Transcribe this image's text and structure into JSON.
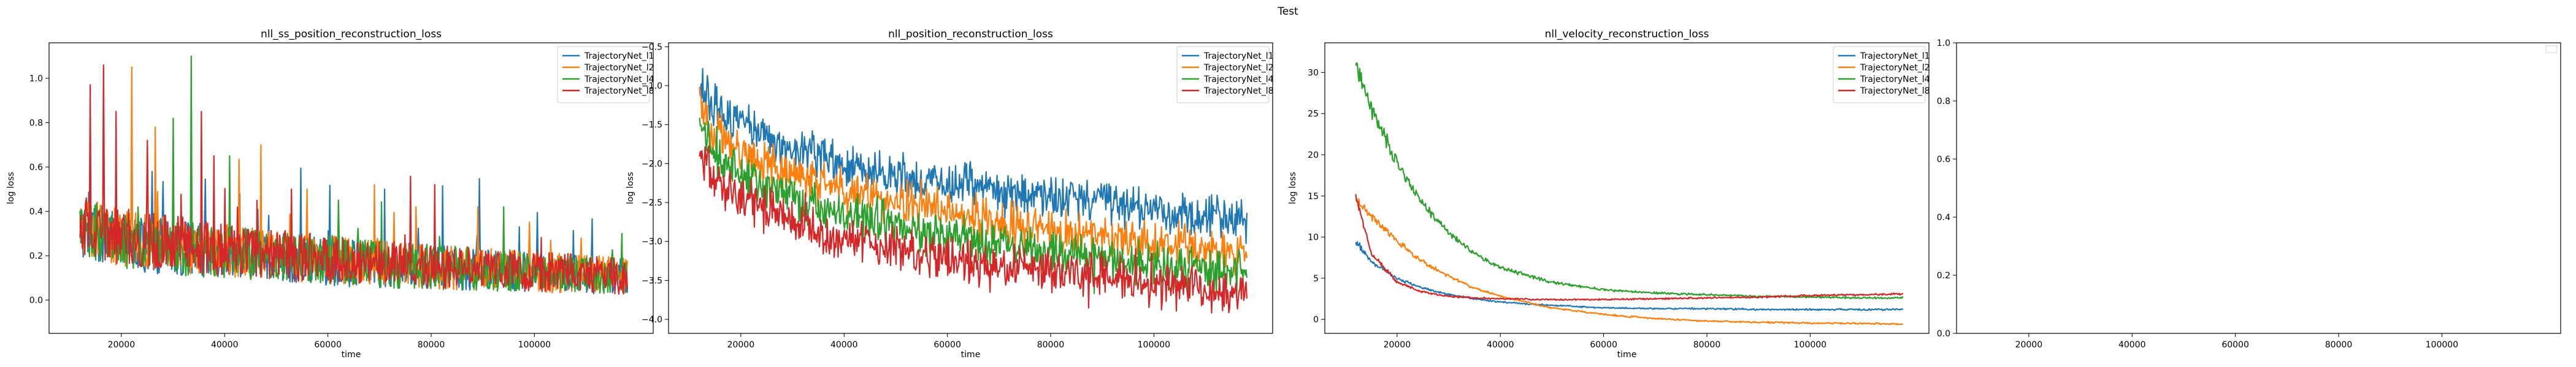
{
  "figure": {
    "suptitle": "Test"
  },
  "chart_data": [
    {
      "type": "line",
      "title": "nll_ss_position_reconstruction_loss",
      "xlabel": "time",
      "ylabel": "log loss",
      "xlim": [
        6000,
        123000
      ],
      "ylim": [
        -0.15,
        1.16
      ],
      "xticks": [
        20000,
        40000,
        60000,
        80000,
        100000
      ],
      "yticks": [
        0.0,
        0.2,
        0.4,
        0.6,
        0.8,
        1.0
      ],
      "ytick_labels": [
        "0.0",
        "0.2",
        "0.4",
        "0.6",
        "0.8",
        "1.0"
      ],
      "grid": false,
      "legend": "top-right",
      "x_range": [
        12000,
        118000
      ],
      "series": [
        {
          "name": "TrajectoryNet_l1",
          "color": "#1f77b4",
          "x": [
            12000,
            20000,
            30000,
            40000,
            50000,
            60000,
            70000,
            80000,
            90000,
            100000,
            110000,
            118000
          ],
          "values": [
            0.28,
            0.22,
            0.2,
            0.18,
            0.16,
            0.14,
            0.13,
            0.12,
            0.11,
            0.1,
            0.09,
            0.08
          ],
          "peaks": [
            [
              26000,
              0.58
            ],
            [
              43000,
              0.48
            ],
            [
              71000,
              0.5
            ],
            [
              97000,
              0.33
            ]
          ]
        },
        {
          "name": "TrajectoryNet_l2",
          "color": "#ff7f0e",
          "x": [
            12000,
            20000,
            30000,
            40000,
            50000,
            60000,
            70000,
            80000,
            90000,
            100000,
            110000,
            118000
          ],
          "values": [
            0.3,
            0.24,
            0.21,
            0.19,
            0.17,
            0.15,
            0.14,
            0.12,
            0.11,
            0.1,
            0.09,
            0.08
          ],
          "peaks": [
            [
              22000,
              1.05
            ],
            [
              26500,
              0.78
            ],
            [
              47000,
              0.7
            ],
            [
              56000,
              0.5
            ],
            [
              69000,
              0.52
            ],
            [
              77000,
              0.42
            ],
            [
              89000,
              0.42
            ],
            [
              109000,
              0.28
            ]
          ]
        },
        {
          "name": "TrajectoryNet_l4",
          "color": "#2ca02c",
          "x": [
            12000,
            20000,
            30000,
            40000,
            50000,
            60000,
            70000,
            80000,
            90000,
            100000,
            110000,
            118000
          ],
          "values": [
            0.29,
            0.23,
            0.2,
            0.18,
            0.17,
            0.15,
            0.13,
            0.12,
            0.11,
            0.1,
            0.09,
            0.09
          ],
          "peaks": [
            [
              33500,
              1.1
            ],
            [
              30000,
              0.82
            ],
            [
              41000,
              0.65
            ],
            [
              62000,
              0.45
            ],
            [
              94000,
              0.42
            ],
            [
              117000,
              0.3
            ]
          ]
        },
        {
          "name": "TrajectoryNet_l8",
          "color": "#d62728",
          "x": [
            12000,
            20000,
            30000,
            40000,
            50000,
            60000,
            70000,
            80000,
            90000,
            100000,
            110000,
            118000
          ],
          "values": [
            0.3,
            0.25,
            0.22,
            0.19,
            0.17,
            0.15,
            0.14,
            0.12,
            0.11,
            0.1,
            0.09,
            0.08
          ],
          "peaks": [
            [
              14000,
              0.97
            ],
            [
              16500,
              1.06
            ],
            [
              19000,
              0.85
            ],
            [
              25000,
              0.72
            ],
            [
              35500,
              0.85
            ],
            [
              38000,
              0.65
            ],
            [
              53000,
              0.5
            ]
          ]
        }
      ]
    },
    {
      "type": "line",
      "title": "nll_position_reconstruction_loss",
      "xlabel": "time",
      "ylabel": "log loss",
      "xlim": [
        6000,
        123000
      ],
      "ylim": [
        -4.18,
        -0.45
      ],
      "xticks": [
        20000,
        40000,
        60000,
        80000,
        100000
      ],
      "yticks": [
        -4.0,
        -3.5,
        -3.0,
        -2.5,
        -2.0,
        -1.5,
        -1.0,
        -0.5
      ],
      "ytick_labels": [
        "−4.0",
        "−3.5",
        "−3.0",
        "−2.5",
        "−2.0",
        "−1.5",
        "−1.0",
        "−0.5"
      ],
      "grid": false,
      "legend": "top-right",
      "x_range": [
        12000,
        118000
      ],
      "series": [
        {
          "name": "TrajectoryNet_l1",
          "color": "#1f77b4",
          "x": [
            12000,
            15000,
            20000,
            30000,
            40000,
            50000,
            60000,
            70000,
            80000,
            90000,
            100000,
            110000,
            118000
          ],
          "values": [
            -1.0,
            -1.25,
            -1.5,
            -1.8,
            -2.0,
            -2.15,
            -2.25,
            -2.35,
            -2.45,
            -2.52,
            -2.6,
            -2.68,
            -2.72
          ],
          "peaks": []
        },
        {
          "name": "TrajectoryNet_l2",
          "color": "#ff7f0e",
          "x": [
            12000,
            15000,
            20000,
            30000,
            40000,
            50000,
            60000,
            70000,
            80000,
            90000,
            100000,
            110000,
            118000
          ],
          "values": [
            -1.25,
            -1.6,
            -1.85,
            -2.15,
            -2.35,
            -2.5,
            -2.62,
            -2.75,
            -2.85,
            -2.95,
            -3.02,
            -3.1,
            -3.15
          ],
          "peaks": []
        },
        {
          "name": "TrajectoryNet_l4",
          "color": "#2ca02c",
          "x": [
            12000,
            15000,
            20000,
            30000,
            40000,
            50000,
            60000,
            70000,
            80000,
            90000,
            100000,
            110000,
            118000
          ],
          "values": [
            -1.5,
            -1.9,
            -2.15,
            -2.45,
            -2.65,
            -2.8,
            -2.92,
            -3.02,
            -3.12,
            -3.2,
            -3.3,
            -3.38,
            -3.45
          ],
          "peaks": []
        },
        {
          "name": "TrajectoryNet_l8",
          "color": "#d62728",
          "x": [
            12000,
            15000,
            20000,
            30000,
            40000,
            50000,
            60000,
            70000,
            80000,
            90000,
            100000,
            110000,
            118000
          ],
          "values": [
            -1.9,
            -2.2,
            -2.45,
            -2.75,
            -2.95,
            -3.1,
            -3.2,
            -3.3,
            -3.38,
            -3.45,
            -3.55,
            -3.62,
            -3.68
          ],
          "peaks": []
        }
      ]
    },
    {
      "type": "line",
      "title": "nll_velocity_reconstruction_loss",
      "xlabel": "time",
      "ylabel": "log loss",
      "xlim": [
        6000,
        123000
      ],
      "ylim": [
        -1.7,
        33.6
      ],
      "xticks": [
        20000,
        40000,
        60000,
        80000,
        100000
      ],
      "yticks": [
        0,
        5,
        10,
        15,
        20,
        25,
        30
      ],
      "ytick_labels": [
        "0",
        "5",
        "10",
        "15",
        "20",
        "25",
        "30"
      ],
      "grid": false,
      "legend": "top-right",
      "x_range": [
        12000,
        118000
      ],
      "series": [
        {
          "name": "TrajectoryNet_l1",
          "color": "#1f77b4",
          "x": [
            12000,
            15000,
            20000,
            25000,
            30000,
            35000,
            40000,
            50000,
            60000,
            70000,
            80000,
            90000,
            100000,
            110000,
            118000
          ],
          "values": [
            9.5,
            7.0,
            5.0,
            3.8,
            3.0,
            2.5,
            2.1,
            1.7,
            1.4,
            1.3,
            1.3,
            1.2,
            1.2,
            1.2,
            1.2
          ],
          "peaks": []
        },
        {
          "name": "TrajectoryNet_l2",
          "color": "#ff7f0e",
          "x": [
            12000,
            15000,
            20000,
            25000,
            30000,
            35000,
            40000,
            50000,
            60000,
            70000,
            80000,
            90000,
            100000,
            110000,
            118000
          ],
          "values": [
            14.5,
            12.5,
            9.5,
            7.0,
            5.2,
            3.8,
            2.8,
            1.4,
            0.6,
            0.1,
            -0.2,
            -0.35,
            -0.45,
            -0.5,
            -0.55
          ],
          "peaks": []
        },
        {
          "name": "TrajectoryNet_l4",
          "color": "#2ca02c",
          "x": [
            12000,
            15000,
            20000,
            25000,
            30000,
            35000,
            40000,
            50000,
            60000,
            70000,
            80000,
            90000,
            100000,
            110000,
            118000
          ],
          "values": [
            31.0,
            25.5,
            19.0,
            14.0,
            10.5,
            8.0,
            6.3,
            4.5,
            3.6,
            3.2,
            3.0,
            2.8,
            2.7,
            2.6,
            2.6
          ],
          "peaks": []
        },
        {
          "name": "TrajectoryNet_l8",
          "color": "#d62728",
          "x": [
            12000,
            15000,
            20000,
            25000,
            30000,
            35000,
            40000,
            50000,
            60000,
            70000,
            80000,
            90000,
            100000,
            110000,
            118000
          ],
          "values": [
            15.0,
            8.0,
            4.5,
            3.3,
            2.8,
            2.6,
            2.5,
            2.4,
            2.4,
            2.5,
            2.6,
            2.7,
            2.9,
            3.0,
            3.1
          ],
          "peaks": []
        }
      ]
    },
    {
      "type": "line",
      "title": "",
      "xlabel": "",
      "ylabel": "",
      "xlim": [
        6000,
        123000
      ],
      "ylim": [
        0.0,
        1.0
      ],
      "xticks": [
        20000,
        40000,
        60000,
        80000,
        100000
      ],
      "yticks": [
        0.0,
        0.2,
        0.4,
        0.6,
        0.8,
        1.0
      ],
      "ytick_labels": [
        "0.0",
        "0.2",
        "0.4",
        "0.6",
        "0.8",
        "1.0"
      ],
      "grid": false,
      "legend": "none",
      "series": []
    }
  ]
}
